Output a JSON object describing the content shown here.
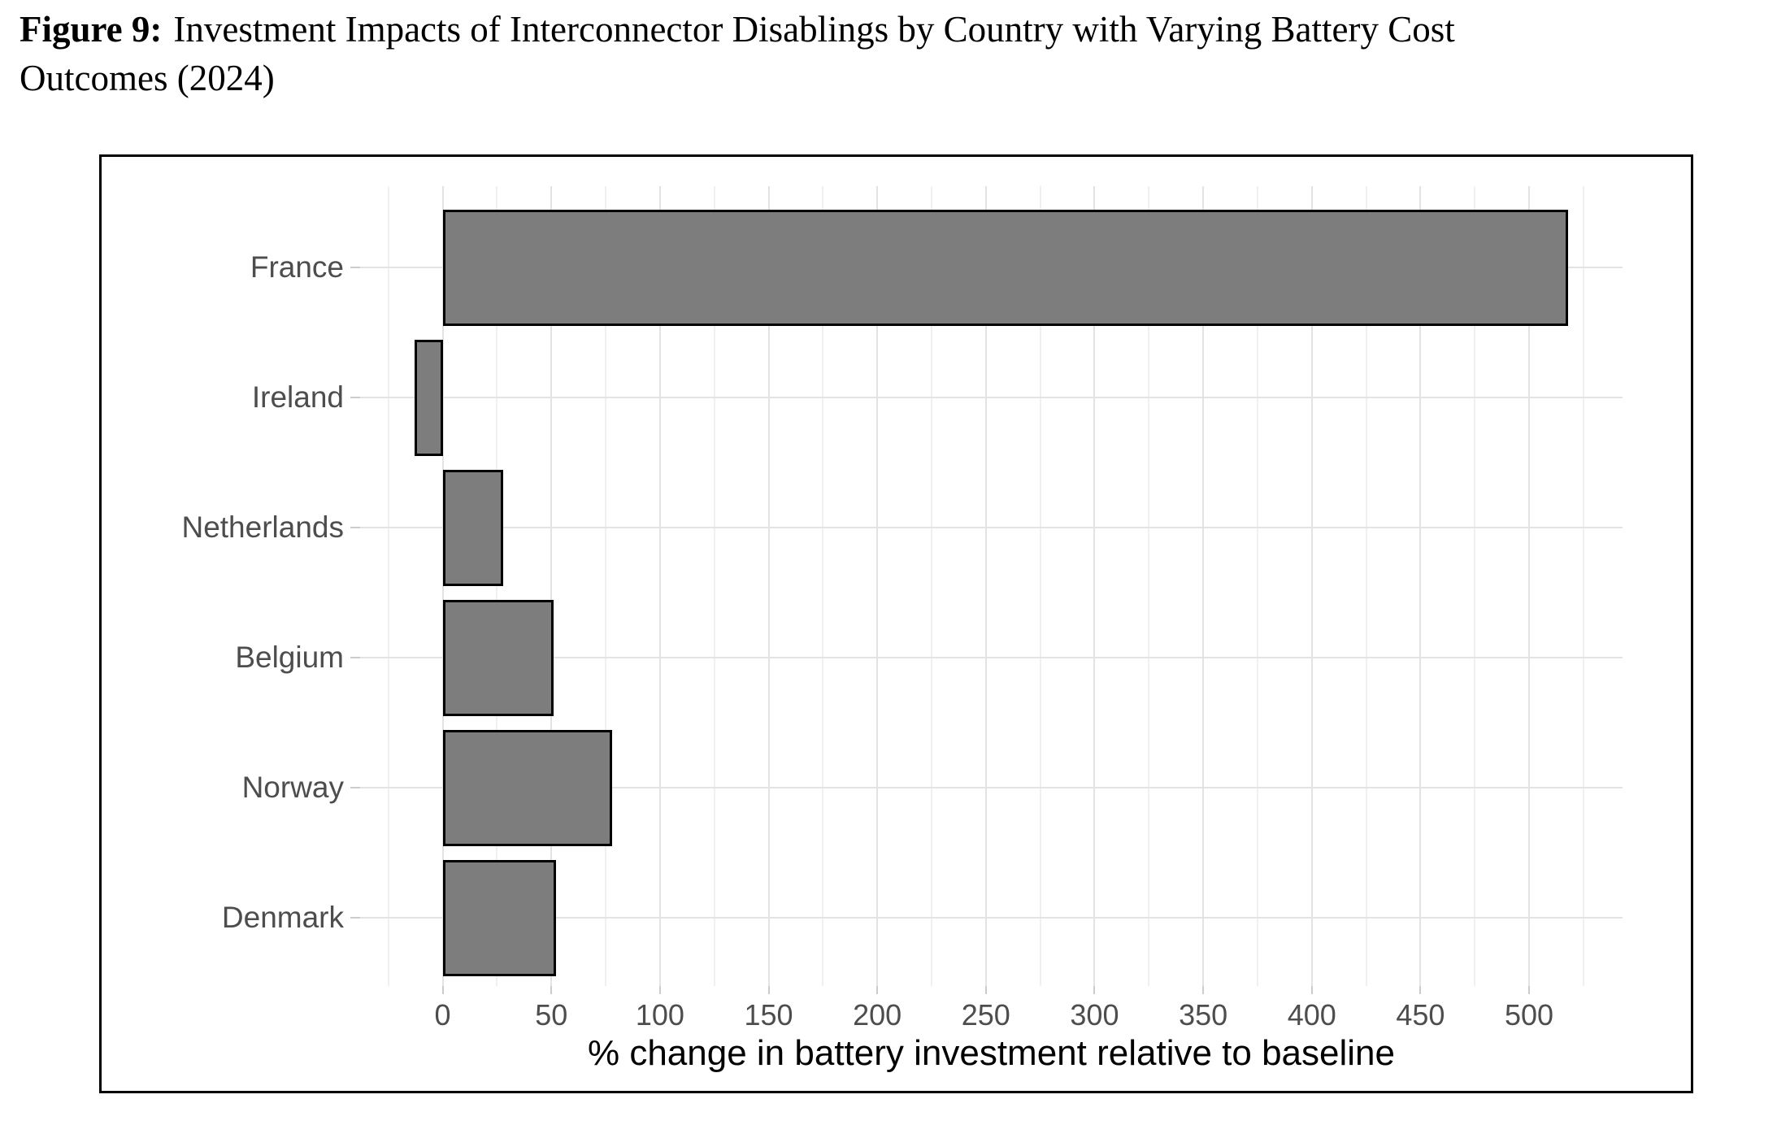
{
  "caption": {
    "label": "Figure 9:",
    "line1_rest": "Investment Impacts of Interconnector Disablings by Country with Varying Battery Cost",
    "line2": "Outcomes (2024)"
  },
  "chart_data": {
    "type": "bar",
    "orientation": "horizontal",
    "title": "",
    "categories": [
      "France",
      "Ireland",
      "Netherlands",
      "Belgium",
      "Norway",
      "Denmark"
    ],
    "values": [
      518,
      -13,
      28,
      51,
      78,
      52
    ],
    "xlabel": "% change in battery investment relative to baseline",
    "ylabel": "",
    "xlim": [
      -38,
      543
    ],
    "x_major_ticks": [
      0,
      50,
      100,
      150,
      200,
      250,
      300,
      350,
      400,
      450,
      500
    ],
    "x_minor_ticks": [
      -25,
      25,
      75,
      125,
      175,
      225,
      275,
      325,
      375,
      425,
      475,
      525
    ],
    "grid": "on",
    "legend": "none",
    "colors": {
      "bar_fill": "#7d7d7d",
      "bar_stroke": "#000000",
      "grid_major": "#e3e3e3",
      "grid_minor": "#f0f0f0",
      "axis_text": "#4d4d4d",
      "axis_title": "#000000",
      "figure_border": "#000000"
    }
  }
}
